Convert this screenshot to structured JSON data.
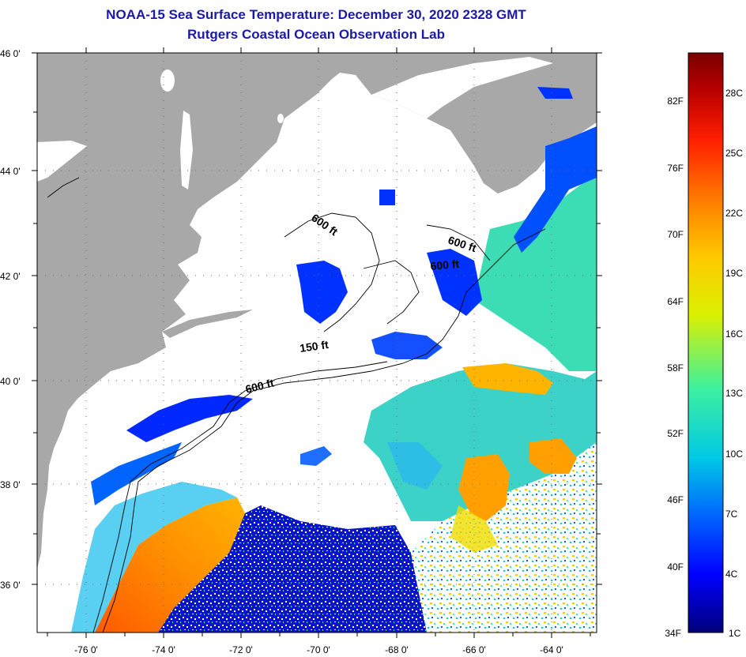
{
  "title": {
    "line1": "NOAA-15 Sea Surface Temperature:  December 30, 2020 2328 GMT",
    "line2": "Rutgers Coastal Ocean Observation Lab"
  },
  "axes": {
    "lat_labels": [
      "46 0'",
      "44 0'",
      "42 0'",
      "40 0'",
      "38 0'",
      "36 0'"
    ],
    "lon_labels": [
      "-76 0'",
      "-74 0'",
      "-72 0'",
      "-70 0'",
      "-68 0'",
      "-66 0'",
      "-64 0'"
    ]
  },
  "contours": {
    "labels": [
      "600 ft",
      "600 ft",
      "600 ft",
      "150 ft",
      "600 ft"
    ]
  },
  "colorbar": {
    "fahrenheit": [
      "82F",
      "76F",
      "70F",
      "64F",
      "58F",
      "52F",
      "46F",
      "40F",
      "34F"
    ],
    "celsius": [
      "28C",
      "25C",
      "22C",
      "19C",
      "16C",
      "13C",
      "10C",
      "7C",
      "4C",
      "1C"
    ]
  },
  "colors": {
    "title": "#1a1aa6",
    "land": "#a8a8a8",
    "cloud": "#ffffff",
    "gradient": [
      "#00007a",
      "#0000ff",
      "#0064ff",
      "#00c8e6",
      "#3cf0a0",
      "#dcf000",
      "#ffc800",
      "#ff7800",
      "#ff1e00",
      "#b40000",
      "#7a0000"
    ]
  }
}
